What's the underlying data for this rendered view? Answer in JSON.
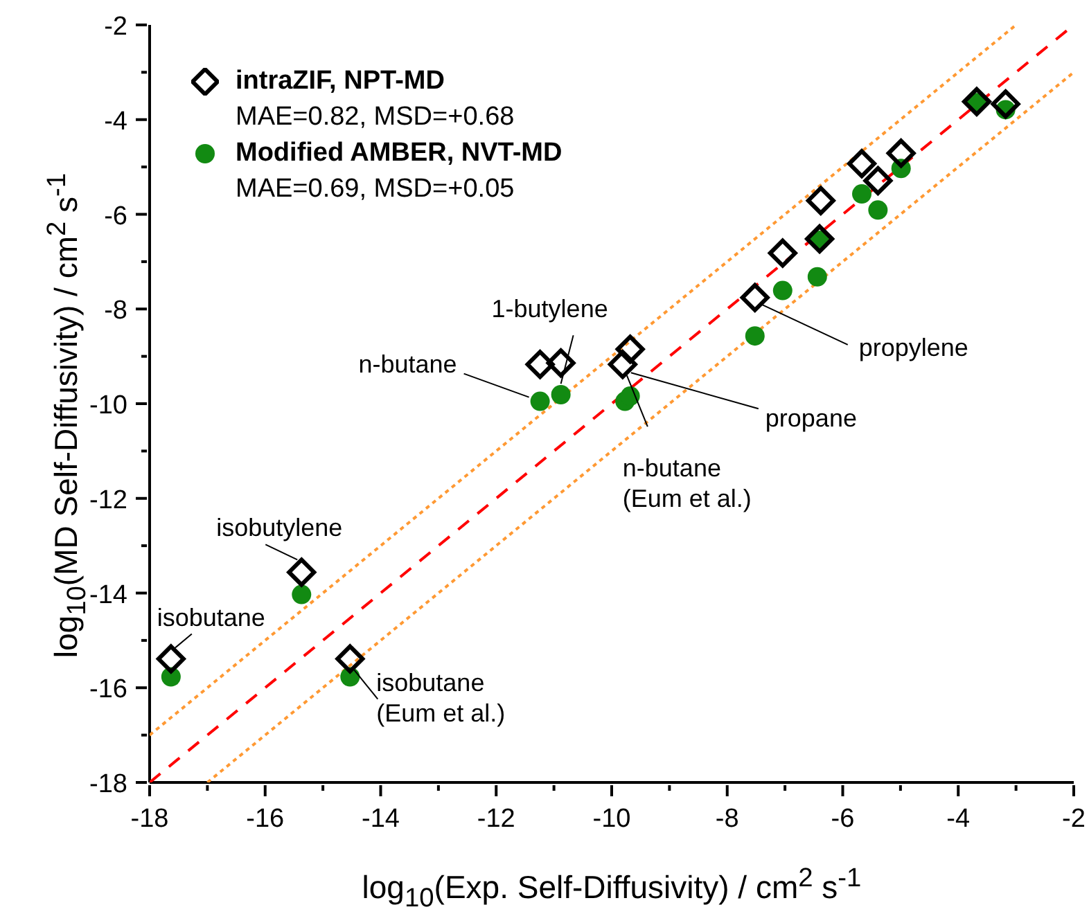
{
  "chart_data": {
    "type": "scatter",
    "xlabel": "log$_{10}$(Exp. Self-Diffusivity) / cm$^{2}$ s$^{-1}$",
    "ylabel": "log$_{10}$(MD Self-Diffusivity) / cm$^{2}$ s$^{-1}$",
    "xlim": [
      -18,
      -2
    ],
    "ylim": [
      -18,
      -2
    ],
    "xticks": [
      -18,
      {
        "value": -17,
        "label": null
      },
      -16,
      {
        "value": -15,
        "label": null
      },
      -14,
      {
        "value": -13,
        "label": null
      },
      -12,
      {
        "value": -11,
        "label": null
      },
      -10,
      {
        "value": -9,
        "label": null
      },
      -8,
      {
        "value": -7,
        "label": null
      },
      -6,
      {
        "value": -5,
        "label": null
      },
      -4,
      {
        "value": -3,
        "label": null
      },
      -2
    ],
    "yticks": [
      -18,
      {
        "value": -17,
        "label": null
      },
      -16,
      {
        "value": -15,
        "label": null
      },
      -14,
      {
        "value": -13,
        "label": null
      },
      -12,
      {
        "value": -11,
        "label": null
      },
      -10,
      {
        "value": -9,
        "label": null
      },
      -8,
      {
        "value": -7,
        "label": null
      },
      -6,
      {
        "value": -5,
        "label": null
      },
      -4,
      {
        "value": -3,
        "label": null
      },
      -2
    ],
    "legend": "top left",
    "series": [
      {
        "name": "intraZIF, NPT-MD",
        "type": "scatter",
        "marker": "diamond",
        "color": "#000000",
        "x": [
          -17.63,
          -15.37,
          -14.53,
          -11.24,
          -10.88,
          -9.81,
          -9.68,
          -7.52,
          -7.04,
          -6.4,
          -6.38,
          -5.67,
          -5.39,
          -4.99,
          -3.68,
          -3.18
        ],
        "values": [
          -15.39,
          -13.56,
          -15.39,
          -9.17,
          -9.14,
          -9.17,
          -8.85,
          -7.76,
          -6.82,
          -6.52,
          -5.71,
          -4.93,
          -5.29,
          -4.71,
          -3.62,
          -3.67
        ]
      },
      {
        "name": "Modified AMBER, NVT-MD",
        "type": "scatter",
        "marker": "circle",
        "color": "#128a12",
        "x": [
          -17.63,
          -15.37,
          -14.53,
          -11.24,
          -10.88,
          -9.77,
          -9.68,
          -7.52,
          -7.04,
          -6.44,
          -6.4,
          -5.67,
          -5.39,
          -4.99,
          -3.68,
          -3.18
        ],
        "values": [
          -15.77,
          -14.03,
          -15.77,
          -9.95,
          -9.81,
          -9.95,
          -9.84,
          -8.57,
          -7.61,
          -7.32,
          -6.55,
          -5.57,
          -5.91,
          -5.03,
          -3.64,
          -3.79
        ]
      },
      {
        "type": "line",
        "color": "#ff0000",
        "line_style": "dashed",
        "x": [
          -18,
          -2
        ],
        "values": [
          -18,
          -2
        ]
      },
      {
        "type": "line",
        "color": "#ff9933",
        "line_style": "dotted",
        "x": [
          -18,
          -3
        ],
        "values": [
          -17,
          -2
        ]
      },
      {
        "type": "line",
        "color": "#ff9933",
        "line_style": "dotted",
        "x": [
          -17,
          -2
        ],
        "values": [
          -18,
          -3
        ]
      }
    ],
    "annotations": [
      {
        "text": "1-butylene",
        "x": -10.88,
        "y": -9.14
      },
      {
        "text": "n-butane",
        "x": -11.24,
        "y": -9.95
      },
      {
        "text": "propane",
        "x": -9.81,
        "y": -9.17
      },
      {
        "text": "propylene",
        "x": -7.52,
        "y": -7.76
      },
      {
        "text": "n-butane\n(Eum et al.)",
        "x": -9.81,
        "y": -9.17
      },
      {
        "text": "isobutylene",
        "x": -15.37,
        "y": -13.56
      },
      {
        "text": "isobutane",
        "x": -17.63,
        "y": -15.39
      },
      {
        "text": "isobutane\n(Eum et al.)",
        "x": -14.53,
        "y": -15.39
      },
      "MAE=0.82, MSD=+0.68",
      "MAE=0.69, MSD=+0.05"
    ]
  }
}
